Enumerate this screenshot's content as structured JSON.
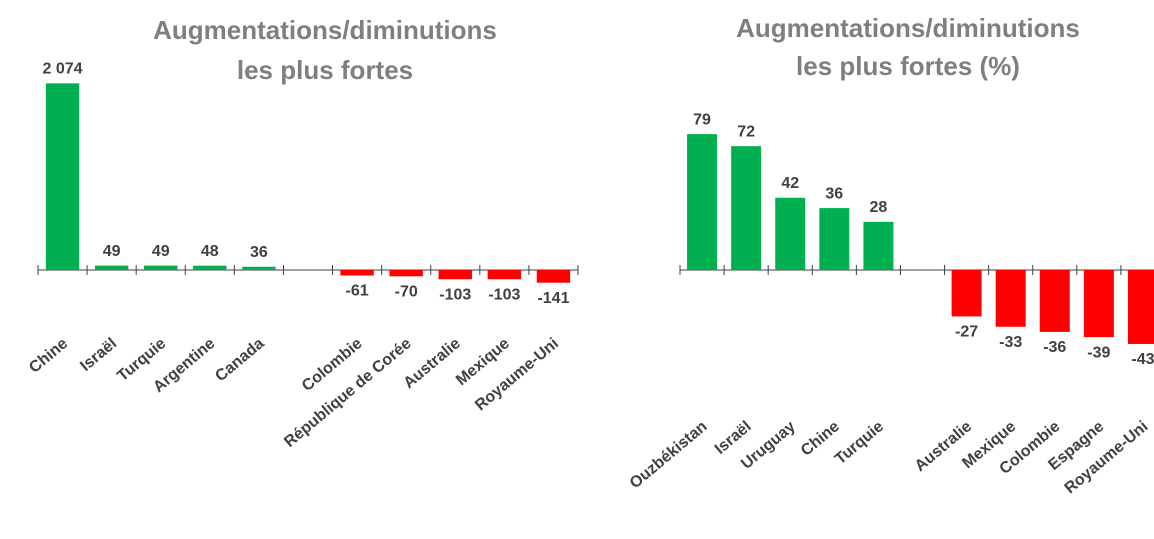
{
  "chart_data": [
    {
      "type": "bar",
      "title": [
        "Augmentations/diminutions",
        "les plus fortes"
      ],
      "categories": [
        "Chine",
        "Israël",
        "Turquie",
        "Argentine",
        "Canada",
        null,
        "Colombie",
        "République de Corée",
        "Australie",
        "Mexique",
        "Royaume-Uni"
      ],
      "values": [
        2074,
        49,
        49,
        48,
        36,
        null,
        -61,
        -70,
        -103,
        -103,
        -141
      ],
      "value_labels": [
        "2 074",
        "49",
        "49",
        "48",
        "36",
        null,
        "-61",
        "-70",
        "-103",
        "-103",
        "-141"
      ],
      "color_positive": "#00b050",
      "color_negative": "#ff0000",
      "ylim": [
        -500,
        2500
      ]
    },
    {
      "type": "bar",
      "title": [
        "Augmentations/diminutions",
        "les plus fortes (%)"
      ],
      "categories": [
        "Ouzbékistan",
        "Israël",
        "Uruguay",
        "Chine",
        "Turquie",
        null,
        "Australie",
        "Mexique",
        "Colombie",
        "Espagne",
        "Royaume-Uni"
      ],
      "values": [
        79,
        72,
        42,
        36,
        28,
        null,
        -27,
        -33,
        -36,
        -39,
        -43
      ],
      "color_positive": "#00b050",
      "color_negative": "#ff0000",
      "ylim": [
        -50,
        100
      ]
    }
  ]
}
